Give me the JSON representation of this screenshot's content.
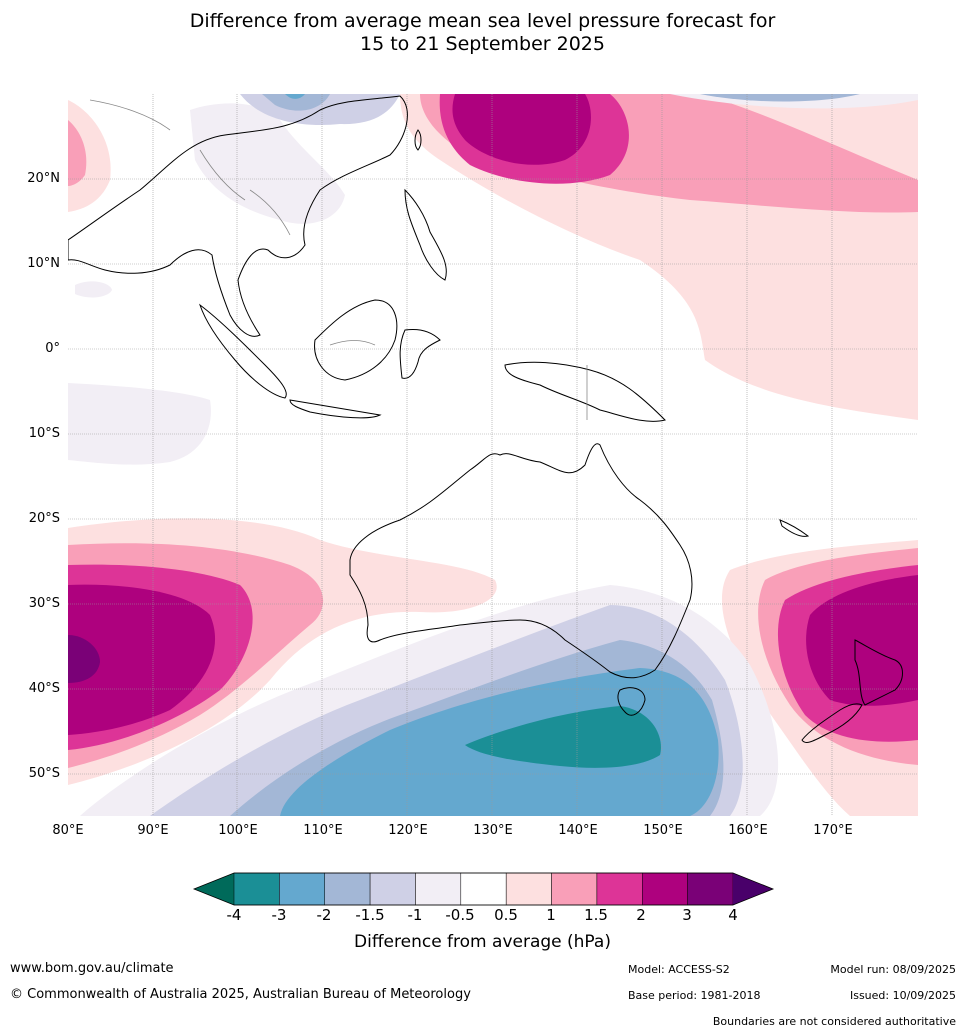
{
  "title": {
    "line1": "Difference from average mean sea level pressure forecast for",
    "line2": "15 to 21 September 2025"
  },
  "map": {
    "lat_labels": [
      "20°N",
      "10°N",
      "0°",
      "10°S",
      "20°S",
      "30°S",
      "40°S",
      "50°S"
    ],
    "lon_labels": [
      "80°E",
      "90°E",
      "100°E",
      "110°E",
      "120°E",
      "130°E",
      "140°E",
      "150°E",
      "160°E",
      "170°E"
    ]
  },
  "colorbar": {
    "ticks": [
      "-4",
      "-3",
      "-2",
      "-1.5",
      "-1",
      "-0.5",
      "0.5",
      "1",
      "1.5",
      "2",
      "3",
      "4"
    ],
    "colors": [
      "#1b8f96",
      "#64a8cf",
      "#a3b7d6",
      "#cfd0e6",
      "#f2eef5",
      "#ffffff",
      "#fde0e0",
      "#f99fb8",
      "#dd3497",
      "#ae017e",
      "#7a0177"
    ],
    "under_color": "#006a5a",
    "over_color": "#49006a",
    "label": "Difference from average (hPa)"
  },
  "footer": {
    "website": "www.bom.gov.au/climate",
    "copyright": "© Commonwealth of Australia 2025, Australian Bureau of Meteorology",
    "model": "Model: ACCESS-S2",
    "model_run": "Model run: 08/09/2025",
    "base_period": "Base period: 1981-2018",
    "issued": "Issued: 10/09/2025",
    "disclaimer": "Boundaries are not considered authoritative"
  }
}
